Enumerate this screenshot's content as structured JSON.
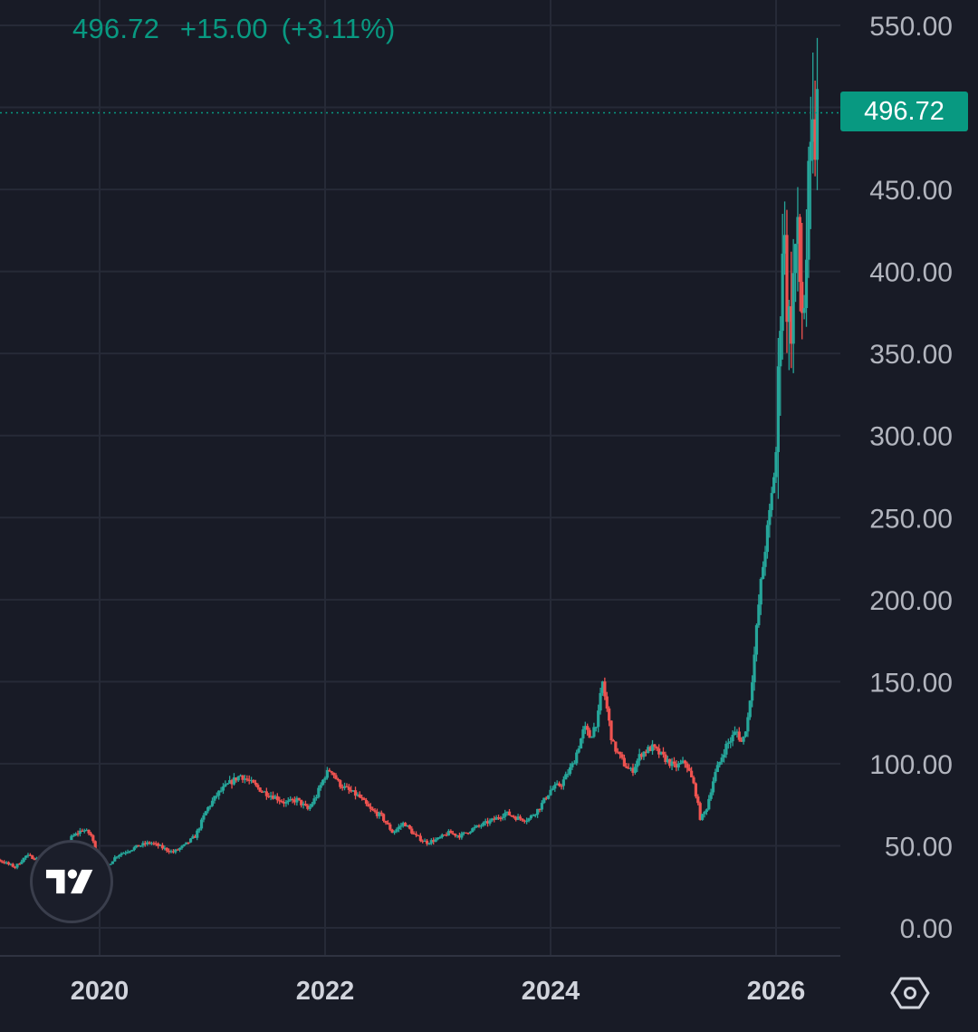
{
  "header": {
    "price": "496.72",
    "change": "+15.00",
    "change_pct": "(+3.11%)"
  },
  "last_price_label": "496.72",
  "colors": {
    "background": "#181b26",
    "grid": "#262a37",
    "axis_text": "#b2b5be",
    "up": "#26a69a",
    "down": "#ef5350",
    "accent": "#089981"
  },
  "icons": {
    "logo": "tradingview-logo-icon",
    "settings": "settings-hexagon-icon"
  },
  "chart_data": {
    "type": "candlestick",
    "title": "",
    "xlabel": "",
    "ylabel": "",
    "y_ticks": [
      "550.00",
      "450.00",
      "400.00",
      "350.00",
      "300.00",
      "250.00",
      "200.00",
      "150.00",
      "100.00",
      "50.00",
      "0.00"
    ],
    "x_ticks": [
      "2020",
      "2022",
      "2024",
      "2026"
    ],
    "ylim": [
      0,
      550
    ],
    "xlim": [
      2018.75,
      2026.85
    ],
    "grid": true,
    "last_price": 496.72,
    "series": [
      {
        "type": "close",
        "points": [
          [
            2018.76,
            44
          ],
          [
            2018.85,
            42
          ],
          [
            2018.95,
            45
          ],
          [
            2019.05,
            43
          ],
          [
            2019.15,
            40
          ],
          [
            2019.25,
            37
          ],
          [
            2019.35,
            44
          ],
          [
            2019.45,
            42
          ],
          [
            2019.55,
            47
          ],
          [
            2019.65,
            45
          ],
          [
            2019.75,
            55
          ],
          [
            2019.85,
            60
          ],
          [
            2019.92,
            57
          ],
          [
            2020.0,
            40
          ],
          [
            2020.05,
            36
          ],
          [
            2020.15,
            44
          ],
          [
            2020.25,
            47
          ],
          [
            2020.35,
            50
          ],
          [
            2020.45,
            52
          ],
          [
            2020.55,
            49
          ],
          [
            2020.65,
            46
          ],
          [
            2020.75,
            50
          ],
          [
            2020.85,
            56
          ],
          [
            2020.95,
            72
          ],
          [
            2021.05,
            82
          ],
          [
            2021.15,
            88
          ],
          [
            2021.25,
            93
          ],
          [
            2021.35,
            88
          ],
          [
            2021.45,
            83
          ],
          [
            2021.55,
            80
          ],
          [
            2021.65,
            76
          ],
          [
            2021.75,
            78
          ],
          [
            2021.85,
            72
          ],
          [
            2021.92,
            80
          ],
          [
            2022.0,
            93
          ],
          [
            2022.05,
            97
          ],
          [
            2022.12,
            88
          ],
          [
            2022.2,
            84
          ],
          [
            2022.3,
            80
          ],
          [
            2022.4,
            72
          ],
          [
            2022.5,
            68
          ],
          [
            2022.6,
            58
          ],
          [
            2022.7,
            64
          ],
          [
            2022.8,
            56
          ],
          [
            2022.9,
            52
          ],
          [
            2023.0,
            54
          ],
          [
            2023.1,
            58
          ],
          [
            2023.2,
            56
          ],
          [
            2023.3,
            60
          ],
          [
            2023.4,
            63
          ],
          [
            2023.5,
            66
          ],
          [
            2023.6,
            70
          ],
          [
            2023.7,
            67
          ],
          [
            2023.8,
            66
          ],
          [
            2023.9,
            73
          ],
          [
            2024.0,
            84
          ],
          [
            2024.1,
            88
          ],
          [
            2024.2,
            100
          ],
          [
            2024.3,
            122
          ],
          [
            2024.35,
            116
          ],
          [
            2024.42,
            128
          ],
          [
            2024.46,
            150
          ],
          [
            2024.55,
            112
          ],
          [
            2024.65,
            100
          ],
          [
            2024.72,
            95
          ],
          [
            2024.8,
            106
          ],
          [
            2024.9,
            110
          ],
          [
            2025.0,
            104
          ],
          [
            2025.1,
            98
          ],
          [
            2025.2,
            101
          ],
          [
            2025.28,
            85
          ],
          [
            2025.33,
            66
          ],
          [
            2025.38,
            72
          ],
          [
            2025.45,
            92
          ],
          [
            2025.55,
            110
          ],
          [
            2025.65,
            120
          ],
          [
            2025.7,
            112
          ],
          [
            2025.75,
            128
          ],
          [
            2025.8,
            160
          ],
          [
            2025.85,
            200
          ],
          [
            2025.9,
            230
          ],
          [
            2025.95,
            255
          ],
          [
            2026.0,
            290
          ],
          [
            2026.03,
            350
          ],
          [
            2026.05,
            430
          ],
          [
            2026.08,
            410
          ],
          [
            2026.12,
            360
          ],
          [
            2026.18,
            420
          ],
          [
            2026.24,
            370
          ],
          [
            2026.29,
            440
          ],
          [
            2026.34,
            481.72
          ],
          [
            2026.37,
            496.72
          ]
        ]
      }
    ]
  }
}
